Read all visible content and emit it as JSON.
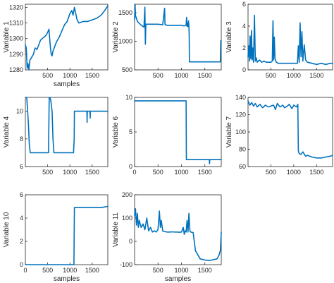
{
  "chart_data": [
    {
      "type": "line",
      "xlabel": "samples",
      "ylabel": "Variable 1",
      "xlim": [
        0,
        1850
      ],
      "ylim": [
        1280,
        1322
      ],
      "xticks": [
        500,
        1000,
        1500
      ],
      "yticks": [
        1280,
        1290,
        1300,
        1310,
        1320
      ],
      "color": "#0072BD",
      "series": [
        {
          "x": [
            0,
            20,
            40,
            60,
            80,
            100,
            140,
            180,
            220,
            260,
            300,
            340,
            380,
            420,
            460,
            500,
            530,
            560,
            580,
            600,
            620,
            660,
            700,
            760,
            820,
            880,
            940,
            1000,
            1040,
            1070,
            1100,
            1130,
            1160,
            1200,
            1300,
            1400,
            1500,
            1600,
            1700,
            1780,
            1850
          ],
          "y": [
            1296,
            1294,
            1281,
            1284,
            1279,
            1286,
            1288,
            1290,
            1294,
            1293,
            1296,
            1299,
            1300,
            1301,
            1302,
            1304,
            1306,
            1295,
            1290,
            1289,
            1292,
            1295,
            1298,
            1301,
            1305,
            1309,
            1311,
            1316,
            1318,
            1315,
            1320,
            1316,
            1312,
            1310,
            1311,
            1311,
            1312,
            1313,
            1315,
            1318,
            1321
          ]
        }
      ]
    },
    {
      "type": "line",
      "xlabel": "",
      "ylabel": "Variable 2",
      "xlim": [
        0,
        1850
      ],
      "ylim": [
        500,
        1650
      ],
      "xticks": [
        500,
        1000,
        1500
      ],
      "yticks": [
        500,
        1000,
        1500
      ],
      "color": "#0072BD",
      "series": [
        {
          "x": [
            0,
            10,
            20,
            40,
            60,
            80,
            120,
            160,
            200,
            220,
            230,
            240,
            260,
            320,
            400,
            500,
            600,
            640,
            650,
            660,
            700,
            800,
            900,
            1000,
            1050,
            1100,
            1110,
            1120,
            1130,
            1140,
            1150,
            1160,
            1165,
            1170,
            1300,
            1500,
            1700,
            1830,
            1840,
            1850
          ],
          "y": [
            1380,
            1650,
            1450,
            1400,
            1350,
            1330,
            1300,
            1270,
            1250,
            1600,
            950,
            1300,
            1300,
            1300,
            1300,
            1300,
            1290,
            1580,
            1290,
            1290,
            1280,
            1280,
            1280,
            1280,
            1270,
            1280,
            1420,
            1260,
            1320,
            1260,
            1360,
            1270,
            1100,
            640,
            640,
            640,
            640,
            640,
            1010,
            1010
          ]
        }
      ]
    },
    {
      "type": "line",
      "xlabel": "",
      "ylabel": "Variable 3",
      "xlim": [
        0,
        1850
      ],
      "ylim": [
        0,
        6
      ],
      "xticks": [
        500,
        1000,
        1500
      ],
      "yticks": [
        0,
        2,
        4,
        6
      ],
      "color": "#0072BD",
      "series": [
        {
          "x": [
            0,
            15,
            30,
            45,
            60,
            75,
            90,
            105,
            120,
            140,
            160,
            180,
            200,
            250,
            300,
            350,
            400,
            450,
            500,
            530,
            545,
            560,
            575,
            590,
            620,
            660,
            700,
            800,
            900,
            1000,
            1080,
            1100,
            1120,
            1140,
            1160,
            1180,
            1200,
            1230,
            1260,
            1300,
            1400,
            1500,
            1600,
            1700,
            1800,
            1850
          ],
          "y": [
            1.2,
            2.2,
            0.8,
            3.1,
            1.0,
            3.6,
            0.9,
            2.0,
            0.7,
            5.0,
            0.8,
            1.1,
            0.7,
            0.9,
            0.7,
            0.8,
            0.7,
            0.7,
            0.7,
            0.8,
            4.5,
            0.9,
            3.0,
            1.0,
            0.7,
            0.6,
            0.6,
            0.6,
            0.6,
            0.6,
            0.6,
            2.2,
            0.7,
            4.3,
            1.2,
            3.5,
            0.8,
            2.3,
            0.9,
            0.7,
            0.6,
            0.5,
            0.6,
            0.5,
            0.6,
            0.6
          ]
        }
      ]
    },
    {
      "type": "line",
      "xlabel": "",
      "ylabel": "Variable 4",
      "xlim": [
        0,
        1850
      ],
      "ylim": [
        6,
        11
      ],
      "xticks": [
        500,
        1000,
        1500
      ],
      "yticks": [
        6,
        8,
        10
      ],
      "color": "#0072BD",
      "series": [
        {
          "x": [
            0,
            30,
            50,
            70,
            90,
            110,
            200,
            300,
            400,
            500,
            520,
            535,
            550,
            570,
            600,
            620,
            640,
            700,
            800,
            900,
            1000,
            1080,
            1095,
            1100,
            1200,
            1300,
            1380,
            1385,
            1390,
            1450,
            1455,
            1460,
            1500,
            1600,
            1700,
            1850
          ],
          "y": [
            11,
            11,
            10,
            9,
            7.5,
            7,
            7,
            7,
            7,
            7,
            7,
            11,
            11,
            10.8,
            10,
            8,
            7,
            7,
            7,
            7,
            7,
            7,
            8,
            10,
            10,
            10,
            10,
            9.2,
            10,
            10,
            9.5,
            10,
            10,
            10,
            10,
            10
          ]
        }
      ]
    },
    {
      "type": "line",
      "xlabel": "",
      "ylabel": "Variable 6",
      "xlim": [
        0,
        1850
      ],
      "ylim": [
        0,
        10
      ],
      "xticks": [
        0,
        500,
        1000,
        1500
      ],
      "yticks": [
        0,
        5,
        10
      ],
      "color": "#0072BD",
      "series": [
        {
          "x": [
            0,
            300,
            600,
            900,
            1100,
            1105,
            1300,
            1500,
            1595,
            1600,
            1605,
            1700,
            1850
          ],
          "y": [
            9.5,
            9.5,
            9.5,
            9.5,
            9.5,
            1.0,
            1.0,
            1.0,
            1.0,
            0.4,
            1.0,
            1.0,
            1.0
          ]
        }
      ]
    },
    {
      "type": "line",
      "xlabel": "",
      "ylabel": "Variable 7",
      "xlim": [
        0,
        1850
      ],
      "ylim": [
        60,
        140
      ],
      "xticks": [
        500,
        1000,
        1500
      ],
      "yticks": [
        60,
        80,
        100,
        120,
        140
      ],
      "color": "#0072BD",
      "series": [
        {
          "x": [
            0,
            40,
            80,
            120,
            160,
            200,
            260,
            320,
            380,
            440,
            500,
            560,
            600,
            640,
            700,
            760,
            800,
            860,
            900,
            960,
            1000,
            1060,
            1090,
            1100,
            1120,
            1160,
            1200,
            1260,
            1300,
            1400,
            1500,
            1600,
            1700,
            1800,
            1850
          ],
          "y": [
            136,
            131,
            134,
            130,
            133,
            129,
            132,
            128,
            131,
            129,
            130,
            131,
            126,
            133,
            129,
            131,
            128,
            130,
            132,
            127,
            131,
            129,
            132,
            78,
            75,
            74,
            77,
            72,
            73,
            71,
            70,
            70,
            71,
            72,
            73
          ]
        }
      ]
    },
    {
      "type": "line",
      "xlabel": "samples",
      "ylabel": "Variable 10",
      "xlim": [
        0,
        1850
      ],
      "ylim": [
        0,
        6
      ],
      "xticks": [
        0,
        500,
        1000,
        1500
      ],
      "yticks": [
        0,
        2,
        4,
        6
      ],
      "color": "#0072BD",
      "series": [
        {
          "x": [
            0,
            500,
            1000,
            1090,
            1100,
            1300,
            1500,
            1700,
            1850
          ],
          "y": [
            0,
            0,
            0,
            0,
            4.9,
            4.9,
            4.9,
            4.9,
            5.0
          ]
        }
      ]
    },
    {
      "type": "line",
      "xlabel": "samples",
      "ylabel": "Variable 11",
      "xlim": [
        0,
        1850
      ],
      "ylim": [
        -100,
        200
      ],
      "xticks": [
        500,
        1000,
        1500
      ],
      "yticks": [
        -100,
        0,
        100,
        200
      ],
      "color": "#0072BD",
      "series": [
        {
          "x": [
            0,
            20,
            40,
            60,
            80,
            100,
            140,
            180,
            220,
            260,
            300,
            340,
            380,
            420,
            460,
            500,
            530,
            550,
            570,
            600,
            640,
            700,
            760,
            800,
            860,
            900,
            960,
            1000,
            1040,
            1060,
            1080,
            1100,
            1120,
            1140,
            1160,
            1180,
            1200,
            1250,
            1300,
            1400,
            1500,
            1600,
            1700,
            1760,
            1800,
            1830,
            1850
          ],
          "y": [
            110,
            140,
            70,
            120,
            60,
            90,
            60,
            75,
            50,
            100,
            45,
            60,
            40,
            45,
            40,
            50,
            130,
            60,
            90,
            45,
            42,
            40,
            40,
            41,
            40,
            40,
            39,
            40,
            60,
            30,
            45,
            40,
            90,
            40,
            120,
            45,
            40,
            38,
            -40,
            -75,
            -80,
            -82,
            -78,
            -75,
            -60,
            -40,
            40
          ]
        }
      ]
    }
  ]
}
